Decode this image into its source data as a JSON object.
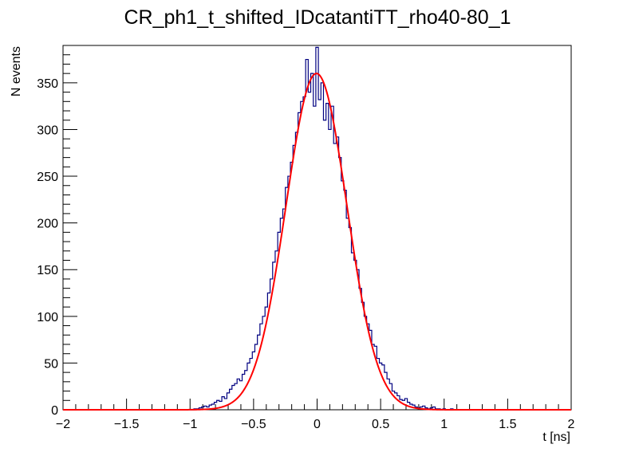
{
  "chart_data": {
    "type": "histogram",
    "title": "CR_ph1_t_shifted_IDcatantiTT_rho40-80_1",
    "xlabel": "t [ns]",
    "ylabel": "N events",
    "xlim": [
      -2,
      2
    ],
    "ylim": [
      0,
      390
    ],
    "grid": false,
    "legend": "none",
    "x_ticks": [
      "-2",
      "-1.5",
      "-1",
      "-0.5",
      "0",
      "0.5",
      "1",
      "1.5",
      "2"
    ],
    "y_ticks": [
      "0",
      "50",
      "100",
      "150",
      "200",
      "250",
      "300",
      "350"
    ],
    "bin_width": 0.02,
    "histogram": {
      "name": "data",
      "color": "#000080",
      "x": [
        -0.98,
        -0.96,
        -0.94,
        -0.92,
        -0.9,
        -0.88,
        -0.86,
        -0.84,
        -0.82,
        -0.8,
        -0.78,
        -0.76,
        -0.74,
        -0.72,
        -0.7,
        -0.68,
        -0.66,
        -0.64,
        -0.62,
        -0.6,
        -0.58,
        -0.56,
        -0.54,
        -0.52,
        -0.5,
        -0.48,
        -0.46,
        -0.44,
        -0.42,
        -0.4,
        -0.38,
        -0.36,
        -0.34,
        -0.32,
        -0.3,
        -0.28,
        -0.26,
        -0.24,
        -0.22,
        -0.2,
        -0.18,
        -0.16,
        -0.14,
        -0.12,
        -0.1,
        -0.08,
        -0.06,
        -0.04,
        -0.02,
        0.0,
        0.02,
        0.04,
        0.06,
        0.08,
        0.1,
        0.12,
        0.14,
        0.16,
        0.18,
        0.2,
        0.22,
        0.24,
        0.26,
        0.28,
        0.3,
        0.32,
        0.34,
        0.36,
        0.38,
        0.4,
        0.42,
        0.44,
        0.46,
        0.48,
        0.5,
        0.52,
        0.54,
        0.56,
        0.58,
        0.6,
        0.62,
        0.64,
        0.66,
        0.68,
        0.7,
        0.72,
        0.74,
        0.76,
        0.78,
        0.8,
        0.82,
        0.84,
        0.86,
        0.88,
        0.9,
        0.92,
        0.94,
        0.96,
        0.98,
        1.0,
        1.02,
        1.04,
        1.06,
        1.08,
        1.1,
        1.12,
        1.14
      ],
      "values": [
        0,
        1,
        1,
        2,
        3,
        4,
        3,
        5,
        6,
        8,
        10,
        9,
        14,
        12,
        18,
        22,
        26,
        28,
        33,
        31,
        38,
        42,
        50,
        55,
        62,
        70,
        80,
        92,
        100,
        110,
        125,
        140,
        158,
        170,
        190,
        205,
        215,
        238,
        250,
        265,
        283,
        297,
        318,
        330,
        335,
        375,
        340,
        360,
        325,
        388,
        332,
        350,
        310,
        328,
        300,
        325,
        285,
        292,
        270,
        245,
        235,
        205,
        195,
        168,
        160,
        150,
        130,
        115,
        100,
        92,
        85,
        70,
        68,
        55,
        50,
        48,
        40,
        33,
        28,
        20,
        18,
        15,
        11,
        10,
        12,
        8,
        6,
        5,
        3,
        2,
        3,
        4,
        2,
        1,
        2,
        3,
        1,
        1,
        0,
        1,
        0,
        0,
        1,
        0,
        0,
        0,
        0
      ]
    },
    "fit": {
      "name": "gauss fit",
      "color": "#ff0000",
      "function": "gaussian",
      "amplitude": 360,
      "mean": -0.005,
      "sigma": 0.24
    }
  }
}
